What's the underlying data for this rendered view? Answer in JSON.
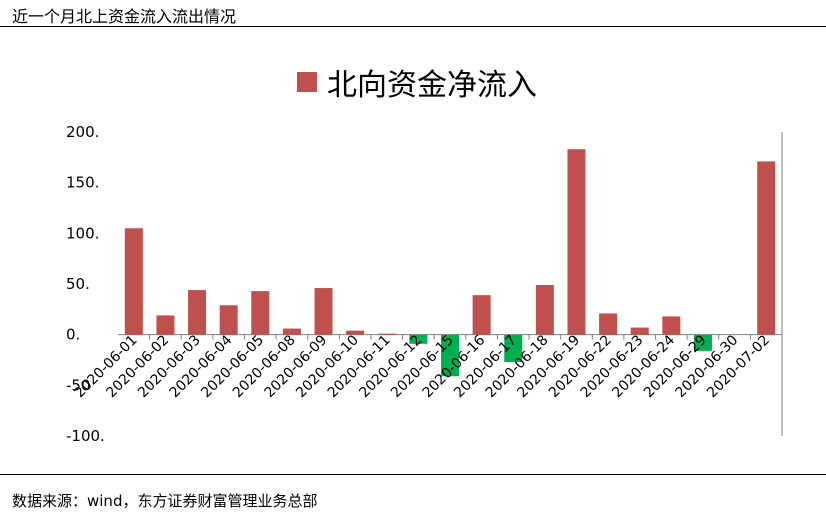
{
  "header": {
    "title": "近一个月北上资金流入流出情况"
  },
  "footer": {
    "source": "数据来源：wind，东方证券财富管理业务总部"
  },
  "colors": {
    "positive": "#C0504D",
    "negative": "#00B050",
    "axis": "#7F7F7F"
  },
  "chart_data": {
    "type": "bar",
    "legend": {
      "label": "北向资金净流入",
      "placement": "top"
    },
    "categories": [
      "2020-06-01",
      "2020-06-02",
      "2020-06-03",
      "2020-06-04",
      "2020-06-05",
      "2020-06-08",
      "2020-06-09",
      "2020-06-10",
      "2020-06-11",
      "2020-06-12",
      "2020-06-15",
      "2020-06-16",
      "2020-06-17",
      "2020-06-18",
      "2020-06-19",
      "2020-06-22",
      "2020-06-23",
      "2020-06-24",
      "2020-06-29",
      "2020-06-30",
      "2020-07-02"
    ],
    "values": [
      105,
      19,
      44,
      29,
      43,
      6,
      46,
      4,
      1,
      -9,
      -41,
      39,
      -27,
      49,
      183,
      21,
      7,
      18,
      -16,
      0,
      171
    ],
    "ylim": [
      -100,
      200
    ],
    "yticks": [
      200,
      150,
      100,
      50,
      0,
      -50,
      -100
    ],
    "ytick_labels": [
      "200.",
      "150.",
      "100.",
      "50.",
      "0.",
      "-50",
      "-100."
    ],
    "grid": false
  }
}
